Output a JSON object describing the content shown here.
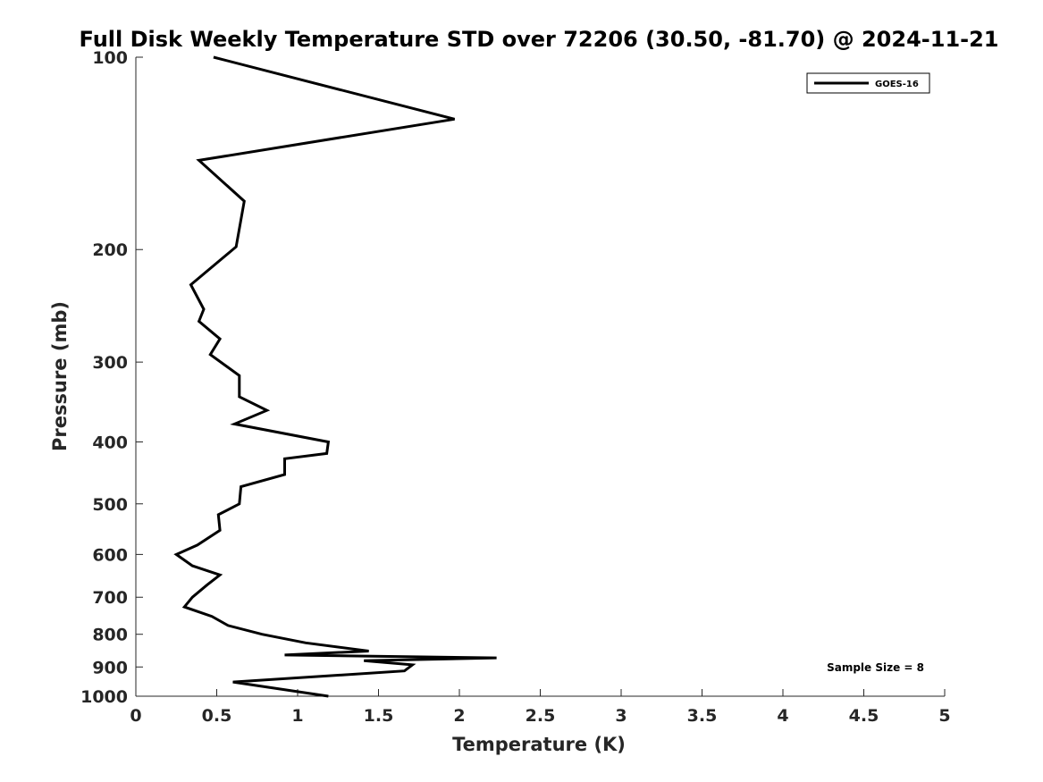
{
  "chart_data": {
    "type": "line",
    "title": "Full Disk Weekly Temperature STD over 72206 (30.50, -81.70) @ 2024-11-21",
    "xlabel": "Temperature (K)",
    "ylabel": "Pressure (mb)",
    "xlim": [
      0,
      5
    ],
    "ylim": [
      100,
      1000
    ],
    "y_scale": "log",
    "y_reversed": true,
    "grid": false,
    "x_ticks": [
      "0",
      "0.5",
      "1",
      "1.5",
      "2",
      "2.5",
      "3",
      "3.5",
      "4",
      "4.5",
      "5"
    ],
    "y_ticks": [
      "100",
      "200",
      "300",
      "400",
      "500",
      "600",
      "700",
      "800",
      "900",
      "1000"
    ],
    "legend_position": "top-right",
    "annotation": "Sample Size = 8",
    "series": [
      {
        "name": "GOES-16",
        "color": "#000000",
        "x": [
          0.48,
          1.97,
          0.39,
          0.67,
          0.62,
          0.34,
          0.42,
          0.39,
          0.52,
          0.46,
          0.64,
          0.64,
          0.81,
          0.61,
          1.19,
          1.18,
          0.92,
          0.92,
          0.65,
          0.64,
          0.51,
          0.52,
          0.38,
          0.25,
          0.35,
          0.52,
          0.44,
          0.35,
          0.3,
          0.47,
          0.57,
          0.78,
          1.05,
          1.44,
          0.92,
          2.23,
          1.41,
          1.71,
          1.66,
          0.6,
          1.19
        ],
        "y": [
          100,
          125,
          145,
          168,
          198,
          227,
          248,
          259,
          276,
          292,
          315,
          340,
          357,
          375,
          400,
          417,
          425,
          450,
          470,
          500,
          520,
          550,
          580,
          600,
          625,
          646,
          670,
          700,
          725,
          750,
          775,
          800,
          825,
          850,
          862,
          871,
          880,
          893,
          913,
          950,
          1000
        ]
      }
    ]
  }
}
